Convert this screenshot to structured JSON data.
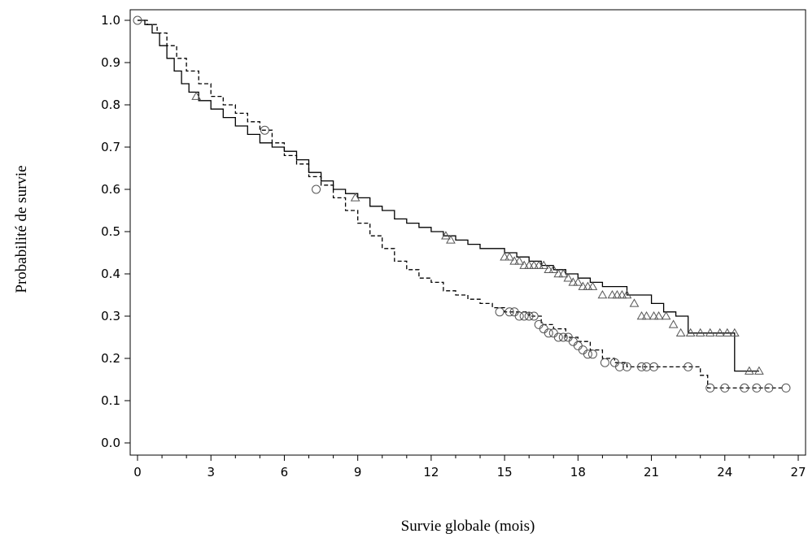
{
  "chart_data": {
    "type": "line",
    "title": "",
    "xlabel": "Survie globale (mois)",
    "ylabel": "Probabilité de survie",
    "xlim": [
      0,
      27
    ],
    "ylim": [
      0,
      1.0
    ],
    "x_ticks": [
      0,
      3,
      6,
      9,
      12,
      15,
      18,
      21,
      24,
      27
    ],
    "x_tick_labels": [
      "0",
      "3",
      "6",
      "9",
      "12",
      "15",
      "18",
      "21",
      "24",
      "27"
    ],
    "y_ticks": [
      0,
      0.1,
      0.2,
      0.3,
      0.4,
      0.5,
      0.6,
      0.7,
      0.8,
      0.9,
      1.0
    ],
    "y_tick_labels": [
      "0.0",
      "0.1",
      "0.2",
      "0.3",
      "0.4",
      "0.5",
      "0.6",
      "0.7",
      "0.8",
      "0.9",
      "1.0"
    ],
    "grid": false,
    "legend": "none",
    "series": [
      {
        "line_style": "solid",
        "marker": "triangle",
        "color": "#000000",
        "x": [
          0,
          0.3,
          0.6,
          0.9,
          1.2,
          1.5,
          1.8,
          2.1,
          2.5,
          3.0,
          3.5,
          4.0,
          4.5,
          5.0,
          5.5,
          6.0,
          6.5,
          7.0,
          7.5,
          8.0,
          8.5,
          9.0,
          9.5,
          10.0,
          10.5,
          11.0,
          11.5,
          12.0,
          12.5,
          13.0,
          13.5,
          14.0,
          14.5,
          15.0,
          15.5,
          16.0,
          16.5,
          17.0,
          17.5,
          18.0,
          18.5,
          19.0,
          19.5,
          20.0,
          20.5,
          21.0,
          21.5,
          22.0,
          22.5,
          23.0,
          23.5,
          24.0,
          24.4,
          24.4,
          25.4
        ],
        "y": [
          1.0,
          0.99,
          0.97,
          0.94,
          0.91,
          0.88,
          0.85,
          0.83,
          0.81,
          0.79,
          0.77,
          0.75,
          0.73,
          0.71,
          0.7,
          0.69,
          0.67,
          0.64,
          0.62,
          0.6,
          0.59,
          0.58,
          0.56,
          0.55,
          0.53,
          0.52,
          0.51,
          0.5,
          0.49,
          0.48,
          0.47,
          0.46,
          0.46,
          0.45,
          0.44,
          0.43,
          0.42,
          0.41,
          0.4,
          0.39,
          0.38,
          0.37,
          0.37,
          0.35,
          0.35,
          0.33,
          0.31,
          0.3,
          0.26,
          0.26,
          0.26,
          0.26,
          0.26,
          0.17,
          0.17
        ],
        "censored_x": [
          2.4,
          8.9,
          12.6,
          12.8,
          15.0,
          15.2,
          15.4,
          15.6,
          15.8,
          16.0,
          16.2,
          16.4,
          16.6,
          16.8,
          17.0,
          17.2,
          17.4,
          17.6,
          17.8,
          18.0,
          18.2,
          18.4,
          18.6,
          19.0,
          19.4,
          19.6,
          19.8,
          20.0,
          20.3,
          20.6,
          20.8,
          21.1,
          21.3,
          21.6,
          21.9,
          22.2,
          22.6,
          23.0,
          23.4,
          23.8,
          24.1,
          24.4,
          25.0,
          25.4
        ],
        "censored_y": [
          0.82,
          0.58,
          0.49,
          0.48,
          0.44,
          0.44,
          0.43,
          0.43,
          0.42,
          0.42,
          0.42,
          0.42,
          0.42,
          0.41,
          0.41,
          0.4,
          0.4,
          0.39,
          0.38,
          0.38,
          0.37,
          0.37,
          0.37,
          0.35,
          0.35,
          0.35,
          0.35,
          0.35,
          0.33,
          0.3,
          0.3,
          0.3,
          0.3,
          0.3,
          0.28,
          0.26,
          0.26,
          0.26,
          0.26,
          0.26,
          0.26,
          0.26,
          0.17,
          0.17
        ]
      },
      {
        "line_style": "dashed",
        "marker": "circle",
        "color": "#000000",
        "x": [
          0,
          0.4,
          0.8,
          1.2,
          1.6,
          2.0,
          2.5,
          3.0,
          3.5,
          4.0,
          4.5,
          5.0,
          5.5,
          6.0,
          6.5,
          7.0,
          7.5,
          8.0,
          8.5,
          9.0,
          9.5,
          10.0,
          10.5,
          11.0,
          11.5,
          12.0,
          12.5,
          13.0,
          13.5,
          14.0,
          14.5,
          15.0,
          15.5,
          16.0,
          16.5,
          17.0,
          17.5,
          18.0,
          18.5,
          19.0,
          19.5,
          20.0,
          20.5,
          21.0,
          21.5,
          22.0,
          22.5,
          23.0,
          23.3,
          24.0,
          25.0,
          26.4
        ],
        "y": [
          1.0,
          0.99,
          0.97,
          0.94,
          0.91,
          0.88,
          0.85,
          0.82,
          0.8,
          0.78,
          0.76,
          0.74,
          0.71,
          0.68,
          0.66,
          0.63,
          0.61,
          0.58,
          0.55,
          0.52,
          0.49,
          0.46,
          0.43,
          0.41,
          0.39,
          0.38,
          0.36,
          0.35,
          0.34,
          0.33,
          0.32,
          0.31,
          0.31,
          0.3,
          0.28,
          0.27,
          0.25,
          0.24,
          0.22,
          0.2,
          0.19,
          0.18,
          0.18,
          0.18,
          0.18,
          0.18,
          0.18,
          0.16,
          0.13,
          0.13,
          0.13,
          0.13
        ],
        "censored_x": [
          0.0,
          5.2,
          7.3,
          14.8,
          15.2,
          15.4,
          15.6,
          15.8,
          16.0,
          16.2,
          16.4,
          16.6,
          16.8,
          17.0,
          17.2,
          17.4,
          17.6,
          17.8,
          18.0,
          18.2,
          18.4,
          18.6,
          19.1,
          19.5,
          19.7,
          20.0,
          20.6,
          20.8,
          21.1,
          22.5,
          23.4,
          24.0,
          24.8,
          25.3,
          25.8,
          26.5
        ],
        "censored_y": [
          1.0,
          0.74,
          0.6,
          0.31,
          0.31,
          0.31,
          0.3,
          0.3,
          0.3,
          0.3,
          0.28,
          0.27,
          0.26,
          0.26,
          0.25,
          0.25,
          0.25,
          0.24,
          0.23,
          0.22,
          0.21,
          0.21,
          0.19,
          0.19,
          0.18,
          0.18,
          0.18,
          0.18,
          0.18,
          0.18,
          0.13,
          0.13,
          0.13,
          0.13,
          0.13,
          0.13
        ]
      }
    ]
  }
}
